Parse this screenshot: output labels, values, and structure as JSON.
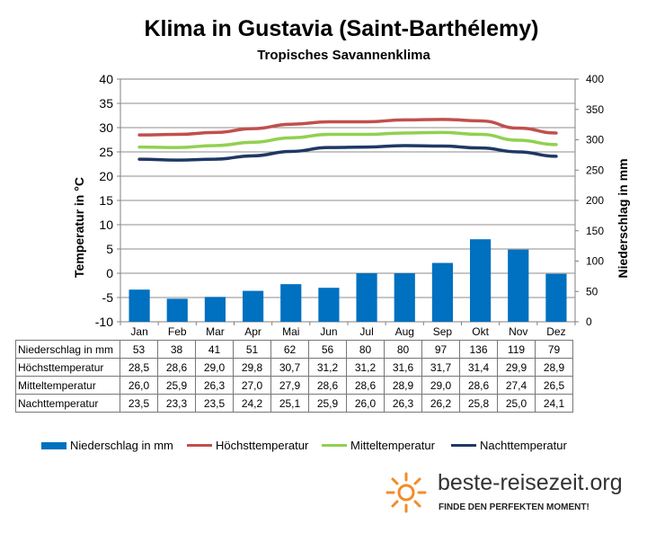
{
  "chart_data": {
    "type": "bar+line",
    "title": "Klima in Gustavia (Saint-Barthélemy)",
    "subtitle": "Tropisches Savannenklima",
    "ylabel_left": "Temperatur in °C",
    "ylabel_right": "Niederschlag in mm",
    "ylim_left": [
      -10,
      40
    ],
    "ylim_right": [
      0,
      400
    ],
    "yticks_left": [
      "40",
      "35",
      "30",
      "25",
      "20",
      "15",
      "10",
      "5",
      "0",
      "-5",
      "-10"
    ],
    "yticks_right": [
      "400",
      "350",
      "300",
      "250",
      "200",
      "150",
      "100",
      "50",
      "0"
    ],
    "categories": [
      "Jan",
      "Feb",
      "Mar",
      "Apr",
      "Mai",
      "Jun",
      "Jul",
      "Aug",
      "Sep",
      "Okt",
      "Nov",
      "Dez"
    ],
    "bar_series": {
      "name": "Niederschlag in mm",
      "color": "#0070c0",
      "values": [
        53,
        38,
        41,
        51,
        62,
        56,
        80,
        80,
        97,
        136,
        119,
        79
      ]
    },
    "line_series": [
      {
        "name": "Höchsttemperatur",
        "color": "#c0504d",
        "values": [
          28.5,
          28.6,
          29.0,
          29.8,
          30.7,
          31.2,
          31.2,
          31.6,
          31.7,
          31.4,
          29.9,
          28.9
        ]
      },
      {
        "name": "Mitteltemperatur",
        "color": "#92d050",
        "values": [
          26.0,
          25.9,
          26.3,
          27.0,
          27.9,
          28.6,
          28.6,
          28.9,
          29.0,
          28.6,
          27.4,
          26.5
        ]
      },
      {
        "name": "Nachttemperatur",
        "color": "#1f3864",
        "values": [
          23.5,
          23.3,
          23.5,
          24.2,
          25.1,
          25.9,
          26.0,
          26.3,
          26.2,
          25.8,
          25.0,
          24.1
        ]
      }
    ],
    "table": {
      "rows": [
        {
          "label": "Niederschlag in mm",
          "cells": [
            "53",
            "38",
            "41",
            "51",
            "62",
            "56",
            "80",
            "80",
            "97",
            "136",
            "119",
            "79"
          ]
        },
        {
          "label": "Höchsttemperatur",
          "cells": [
            "28,5",
            "28,6",
            "29,0",
            "29,8",
            "30,7",
            "31,2",
            "31,2",
            "31,6",
            "31,7",
            "31,4",
            "29,9",
            "28,9"
          ]
        },
        {
          "label": "Mitteltemperatur",
          "cells": [
            "26,0",
            "25,9",
            "26,3",
            "27,0",
            "27,9",
            "28,6",
            "28,6",
            "28,9",
            "29,0",
            "28,6",
            "27,4",
            "26,5"
          ]
        },
        {
          "label": "Nachttemperatur",
          "cells": [
            "23,5",
            "23,3",
            "23,5",
            "24,2",
            "25,1",
            "25,9",
            "26,0",
            "26,3",
            "26,2",
            "25,8",
            "25,0",
            "24,1"
          ]
        }
      ]
    },
    "legend": [
      "Niederschlag in mm",
      "Höchsttemperatur",
      "Mitteltemperatur",
      "Nachttemperatur"
    ],
    "grid": true
  },
  "branding": {
    "site": "beste-reisezeit.org",
    "tagline": "FINDE DEN PERFEKTEN MOMENT!",
    "logo_color": "#f28c28"
  }
}
